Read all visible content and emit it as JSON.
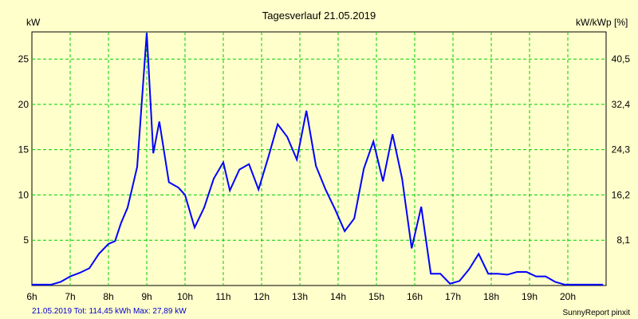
{
  "chart_data": {
    "type": "line",
    "title": "Tagesverlauf 21.05.2019",
    "ylabel_left": "kW",
    "ylabel_right": "kW/kWp [%]",
    "y_ticks_left": [
      5,
      10,
      15,
      20,
      25
    ],
    "y_ticks_right": [
      "8,1",
      "16,2",
      "24,3",
      "32,4",
      "40,5"
    ],
    "ylim": [
      0,
      28
    ],
    "xlim": [
      6,
      21
    ],
    "x_ticks": [
      {
        "label": "6h",
        "x": 6
      },
      {
        "label": "7h",
        "x": 7
      },
      {
        "label": "8h",
        "x": 8
      },
      {
        "label": "9h",
        "x": 9
      },
      {
        "label": "10h",
        "x": 10
      },
      {
        "label": "11h",
        "x": 11
      },
      {
        "label": "12h",
        "x": 12
      },
      {
        "label": "13h",
        "x": 13
      },
      {
        "label": "14h",
        "x": 14
      },
      {
        "label": "15h",
        "x": 15
      },
      {
        "label": "16h",
        "x": 16
      },
      {
        "label": "17h",
        "x": 17
      },
      {
        "label": "18h",
        "x": 18
      },
      {
        "label": "19h",
        "x": 19
      },
      {
        "label": "20h",
        "x": 20
      }
    ],
    "grid": true,
    "line_color": "#0000ff",
    "grid_color": "#00cc00",
    "series": [
      {
        "x": [
          6.0,
          6.25,
          6.5,
          6.75,
          7.0,
          7.25,
          7.5,
          7.75,
          8.0,
          8.17,
          8.33,
          8.5,
          8.75,
          9.0,
          9.17,
          9.33,
          9.58,
          9.83,
          10.0,
          10.25,
          10.5,
          10.75,
          11.0,
          11.17,
          11.42,
          11.67,
          11.92,
          12.17,
          12.42,
          12.67,
          12.92,
          13.17,
          13.42,
          13.67,
          13.92,
          14.17,
          14.42,
          14.67,
          14.92,
          15.17,
          15.42,
          15.67,
          15.92,
          16.17,
          16.42,
          16.67,
          16.92,
          17.17,
          17.42,
          17.67,
          17.92,
          18.17,
          18.42,
          18.67,
          18.92,
          19.17,
          19.42,
          19.67,
          19.92,
          20.17,
          20.42,
          20.67,
          20.92
        ],
        "values": [
          0.1,
          0.1,
          0.1,
          0.4,
          1.0,
          1.4,
          1.9,
          3.5,
          4.6,
          4.9,
          6.9,
          8.6,
          13.1,
          27.9,
          14.6,
          18.1,
          11.4,
          10.8,
          10.0,
          6.4,
          8.6,
          11.8,
          13.6,
          10.5,
          12.8,
          13.4,
          10.6,
          14.1,
          17.8,
          16.4,
          13.9,
          19.3,
          13.2,
          10.6,
          8.4,
          6.0,
          7.4,
          12.9,
          15.9,
          11.5,
          16.7,
          11.8,
          4.1,
          8.7,
          1.3,
          1.3,
          0.2,
          0.5,
          1.8,
          3.5,
          1.3,
          1.3,
          1.2,
          1.5,
          1.5,
          1.0,
          1.0,
          0.4,
          0.1,
          0.1,
          0.1,
          0.1,
          0.1
        ]
      }
    ]
  },
  "footer": {
    "summary": "21.05.2019 Tot: 114,45 kWh Max: 27,89 kW",
    "brand": "SunnyReport pinxit"
  }
}
